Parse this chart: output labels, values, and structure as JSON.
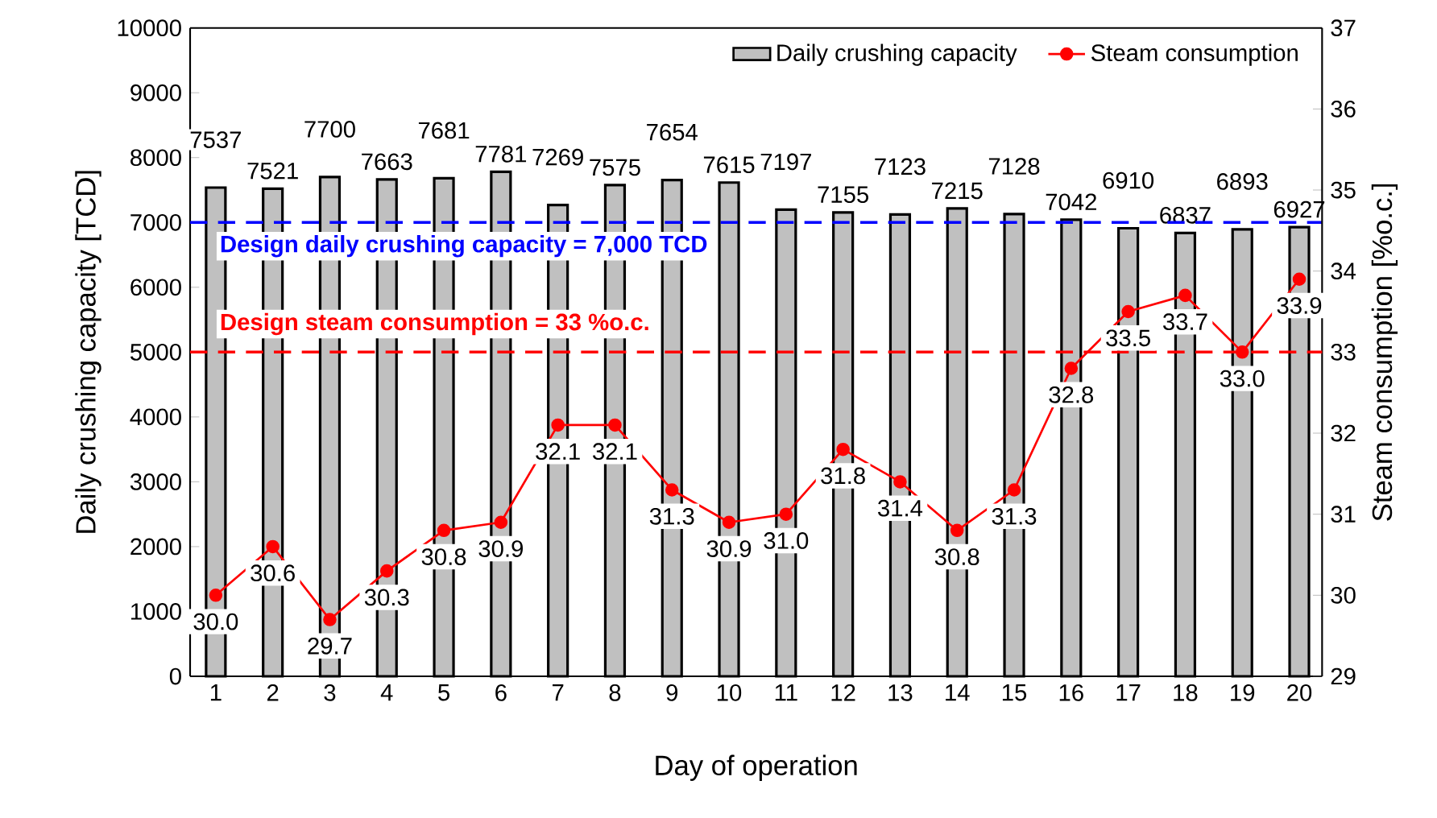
{
  "chart_data": {
    "type": "bar",
    "xlabel": "Day of operation",
    "ylabel": "Daily crushing capacity [TCD]",
    "y2label": "Steam consumption [%o.c.]",
    "categories": [
      "1",
      "2",
      "3",
      "4",
      "5",
      "6",
      "7",
      "8",
      "9",
      "10",
      "11",
      "12",
      "13",
      "14",
      "15",
      "16",
      "17",
      "18",
      "19",
      "20"
    ],
    "series": [
      {
        "name": "Daily crushing capacity",
        "color": "#c0c0c0",
        "values": [
          7537,
          7521,
          7700,
          7663,
          7681,
          7781,
          7269,
          7575,
          7654,
          7615,
          7197,
          7155,
          7123,
          7215,
          7128,
          7042,
          6910,
          6837,
          6893,
          6927
        ]
      },
      {
        "name": "Steam consumption",
        "type": "line",
        "axis": "y2",
        "color": "#ff0000",
        "marker": "circle",
        "values": [
          30.0,
          30.6,
          29.7,
          30.3,
          30.8,
          30.9,
          32.1,
          32.1,
          31.3,
          30.9,
          31.0,
          31.8,
          31.4,
          30.8,
          31.3,
          32.8,
          33.5,
          33.7,
          33.0,
          33.9
        ],
        "value_labels": [
          "30.0",
          "30.6",
          "29.7",
          "30.3",
          "30.8",
          "30.9",
          "32.1",
          "32.1",
          "31.3",
          "30.9",
          "31.0",
          "31.8",
          "31.4",
          "30.8",
          "31.3",
          "32.8",
          "33.5",
          "33.7",
          "33.0",
          "33.9"
        ]
      }
    ],
    "ylim": [
      0,
      10000
    ],
    "yticks": [
      0,
      1000,
      2000,
      3000,
      4000,
      5000,
      6000,
      7000,
      8000,
      9000,
      10000
    ],
    "y2lim": [
      29,
      37
    ],
    "y2ticks": [
      29,
      30,
      31,
      32,
      33,
      34,
      35,
      36,
      37
    ],
    "ref_lines": [
      {
        "axis": "y",
        "value": 7000,
        "label": "Design daily crushing capacity = 7,000 TCD",
        "color": "#0000ff",
        "line_style": "dashed"
      },
      {
        "axis": "y2",
        "value": 33,
        "label": "Design steam consumption = 33 %o.c.",
        "color": "#ff0000",
        "line_style": "dashed"
      }
    ],
    "data_labels": true,
    "legend": "top right"
  }
}
